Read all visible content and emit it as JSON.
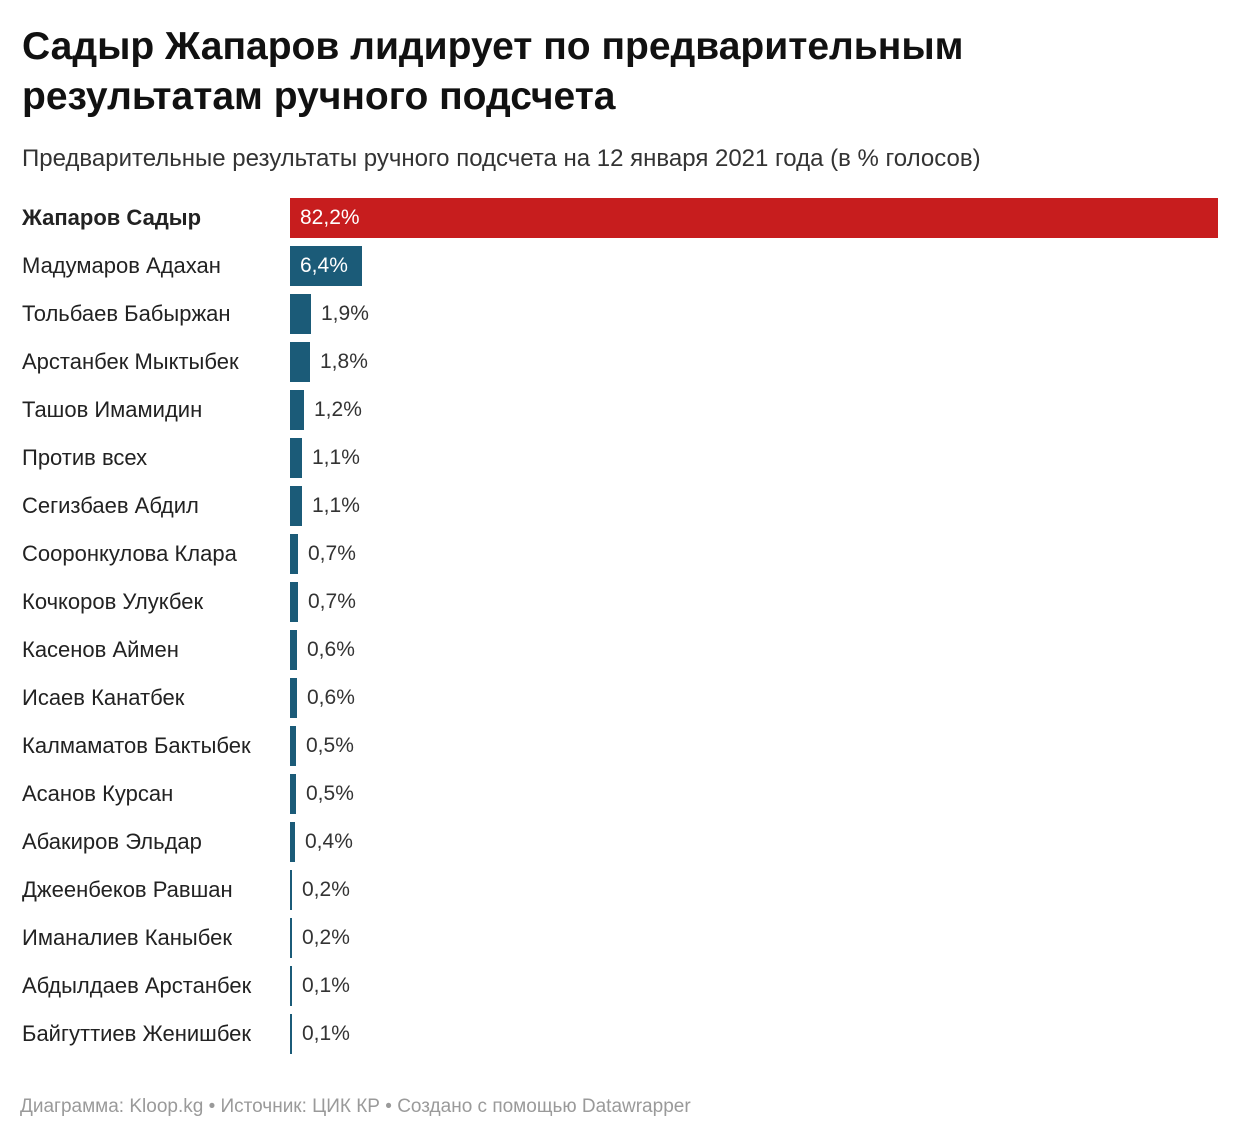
{
  "title": "Садыр Жапаров лидирует по предварительным результатам ручного подсчета",
  "subtitle": "Предварительные результаты ручного подсчета на 12 января 2021 года (в % голосов)",
  "footer": "Диаграмма: Kloop.kg • Источник: ЦИК КР • Создано с помощью Datawrapper",
  "colors": {
    "leader": "#c71d1e",
    "others": "#1b5b78"
  },
  "chart_data": {
    "type": "bar",
    "orientation": "horizontal",
    "title": "Садыр Жапаров лидирует по предварительным результатам ручного подсчета",
    "subtitle": "Предварительные результаты ручного подсчета на 12 января 2021 года (в % голосов)",
    "xlim": [
      0,
      82.2
    ],
    "grid": false,
    "categories": [
      "Жапаров Садыр",
      "Мадумаров Адахан",
      "Тольбаев Бабыржан",
      "Арстанбек Мыктыбек",
      "Ташов Имамидин",
      "Против всех",
      "Сегизбаев Абдил",
      "Сооронкулова Клара",
      "Кочкоров Улукбек",
      "Касенов Аймен",
      "Исаев Канатбек",
      "Калмаматов Бактыбек",
      "Асанов Курсан",
      "Абакиров Эльдар",
      "Джеенбеков Равшан",
      "Иманалиев Каныбек",
      "Абдылдаев Арстанбек",
      "Байгуттиев Женишбек"
    ],
    "values": [
      82.2,
      6.4,
      1.9,
      1.8,
      1.2,
      1.1,
      1.1,
      0.7,
      0.7,
      0.6,
      0.6,
      0.5,
      0.5,
      0.4,
      0.2,
      0.2,
      0.1,
      0.1
    ],
    "value_labels": [
      "82,2%",
      "6,4%",
      "1,9%",
      "1,8%",
      "1,2%",
      "1,1%",
      "1,1%",
      "0,7%",
      "0,7%",
      "0,6%",
      "0,6%",
      "0,5%",
      "0,5%",
      "0,4%",
      "0,2%",
      "0,2%",
      "0,1%",
      "0,1%"
    ],
    "highlighted": [
      0
    ]
  }
}
